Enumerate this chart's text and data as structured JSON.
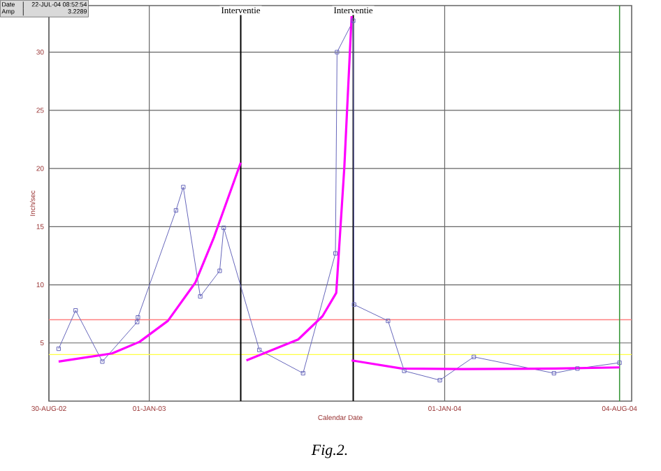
{
  "chart_data": {
    "type": "line",
    "xlabel": "Calendar Date",
    "ylabel": "Inch/sec",
    "xlim": [
      "2002-08-30",
      "2004-08-19"
    ],
    "ylim": [
      0,
      34
    ],
    "xticks": [
      {
        "value": "2002-08-30",
        "label": "30-AUG-02"
      },
      {
        "value": "2003-01-01",
        "label": "01-JAN-03"
      },
      {
        "value": "2004-01-01",
        "label": "01-JAN-04"
      },
      {
        "value": "2004-08-04",
        "label": "04-AUG-04"
      }
    ],
    "yticks": [
      5,
      10,
      15,
      20,
      25,
      30
    ],
    "grid": true,
    "line_style": "solid",
    "series": [
      {
        "color": "#6666bb",
        "marker": "square",
        "x": [
          "2002-09-11",
          "2002-10-02",
          "2002-11-04",
          "2002-12-17",
          "2002-12-18",
          "2003-02-03",
          "2003-02-12",
          "2003-03-05",
          "2003-03-29",
          "2003-04-03",
          "2003-05-17",
          "2003-07-10",
          "2003-08-19",
          "2003-08-21",
          "2003-09-10",
          "2003-09-11",
          "2003-10-23",
          "2003-11-12",
          "2003-12-26",
          "2004-02-06",
          "2004-05-15",
          "2004-06-13",
          "2004-08-04"
        ],
        "values": [
          4.5,
          7.8,
          3.4,
          6.8,
          7.2,
          16.4,
          18.4,
          9.0,
          11.2,
          14.9,
          4.4,
          2.4,
          12.7,
          30.0,
          32.7,
          8.3,
          6.9,
          2.6,
          1.8,
          3.8,
          2.4,
          2.8,
          3.3
        ]
      },
      {
        "color": "#ff00ff",
        "marker": "none",
        "x": [
          "2002-09-11",
          "2002-11-16",
          "2002-12-20",
          "2003-01-24",
          "2003-02-27",
          "2003-03-22",
          "2003-04-24"
        ],
        "values": [
          3.4,
          4.1,
          5.1,
          6.9,
          10.2,
          14.1,
          20.5
        ]
      },
      {
        "color": "#ff00ff",
        "marker": "none",
        "x": [
          "2003-05-01",
          "2003-07-04",
          "2003-08-03",
          "2003-08-20",
          "2003-08-30",
          "2003-09-08"
        ],
        "values": [
          3.5,
          5.3,
          7.3,
          9.3,
          20.1,
          33.1
        ]
      },
      {
        "color": "#ff00ff",
        "marker": "none",
        "x": [
          "2003-09-08",
          "2003-11-09",
          "2004-01-23",
          "2004-05-17",
          "2004-08-04"
        ],
        "values": [
          3.5,
          2.8,
          2.75,
          2.8,
          2.9
        ]
      }
    ],
    "ref_lines": [
      {
        "axis": "y",
        "value": 7,
        "color": "#ff8080"
      },
      {
        "axis": "y",
        "value": 4,
        "color": "#ffff40"
      },
      {
        "axis": "x",
        "value": "2003-04-24",
        "label": "Interventie",
        "color": "#000000"
      },
      {
        "axis": "x",
        "value": "2003-09-10",
        "label": "Interventie",
        "color": "#000000"
      },
      {
        "axis": "x",
        "value": "2004-08-04",
        "color": "#339933"
      }
    ],
    "annotations": [
      "Date",
      "22-JUL-04 08:52:54",
      "Amp",
      "3.2289",
      "Fig.2."
    ]
  }
}
